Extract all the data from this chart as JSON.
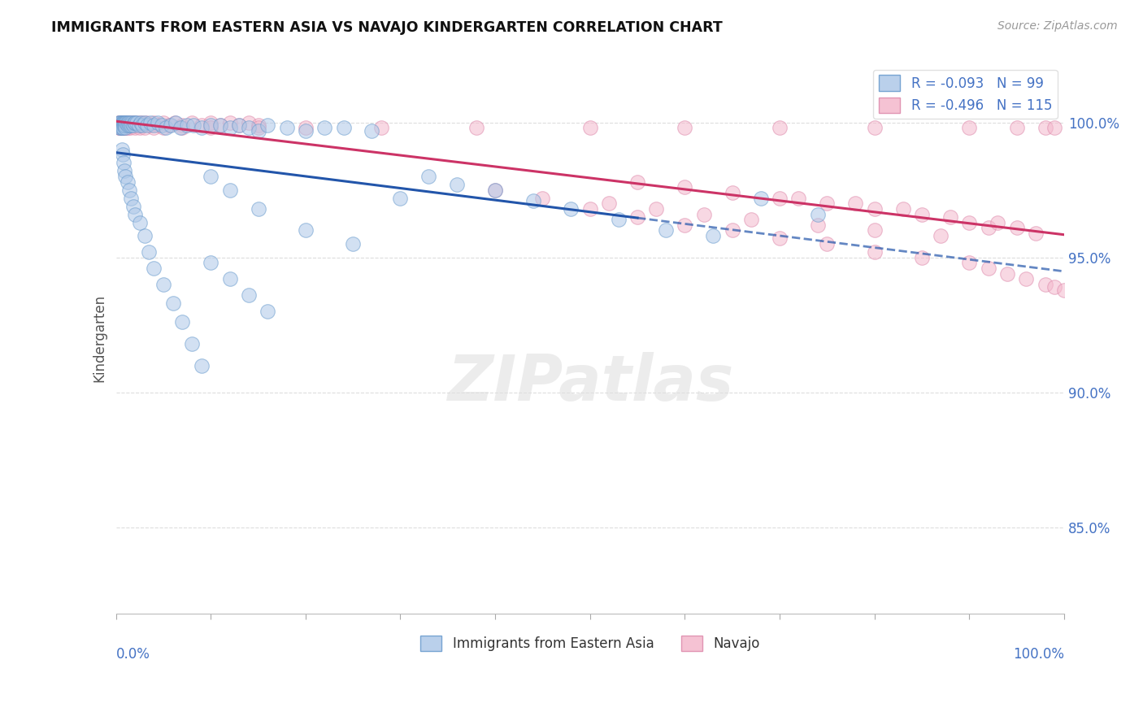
{
  "title": "IMMIGRANTS FROM EASTERN ASIA VS NAVAJO KINDERGARTEN CORRELATION CHART",
  "source_text": "Source: ZipAtlas.com",
  "ylabel": "Kindergarten",
  "legend_series": [
    "Immigrants from Eastern Asia",
    "Navajo"
  ],
  "R_blue": -0.093,
  "N_blue": 99,
  "R_pink": -0.496,
  "N_pink": 115,
  "blue_scatter_color": "#aec8e8",
  "pink_scatter_color": "#f4b8cc",
  "blue_edge_color": "#6699cc",
  "pink_edge_color": "#dd88aa",
  "blue_line_color": "#2255aa",
  "pink_line_color": "#cc3366",
  "ytick_labels": [
    "85.0%",
    "90.0%",
    "95.0%",
    "100.0%"
  ],
  "ytick_values": [
    0.85,
    0.9,
    0.95,
    1.0
  ],
  "xlim": [
    0.0,
    1.0
  ],
  "ylim": [
    0.818,
    1.022
  ],
  "title_color": "#111111",
  "axis_label_color": "#4472C4",
  "ylabel_color": "#555555",
  "grid_color": "#dddddd",
  "watermark_text": "ZIPatlas",
  "blue_x": [
    0.003,
    0.003,
    0.004,
    0.004,
    0.005,
    0.005,
    0.005,
    0.006,
    0.006,
    0.006,
    0.007,
    0.007,
    0.007,
    0.008,
    0.008,
    0.009,
    0.009,
    0.01,
    0.01,
    0.01,
    0.011,
    0.012,
    0.012,
    0.013,
    0.014,
    0.015,
    0.016,
    0.017,
    0.018,
    0.019,
    0.02,
    0.022,
    0.024,
    0.026,
    0.028,
    0.03,
    0.033,
    0.036,
    0.04,
    0.044,
    0.048,
    0.053,
    0.058,
    0.063,
    0.068,
    0.075,
    0.082,
    0.09,
    0.1,
    0.11,
    0.12,
    0.13,
    0.14,
    0.15,
    0.16,
    0.18,
    0.2,
    0.22,
    0.24,
    0.27,
    0.3,
    0.33,
    0.36,
    0.4,
    0.44,
    0.48,
    0.53,
    0.58,
    0.63,
    0.68,
    0.74,
    0.006,
    0.007,
    0.008,
    0.009,
    0.01,
    0.012,
    0.014,
    0.016,
    0.018,
    0.02,
    0.025,
    0.03,
    0.035,
    0.04,
    0.05,
    0.06,
    0.07,
    0.08,
    0.09,
    0.1,
    0.12,
    0.15,
    0.2,
    0.25,
    0.1,
    0.12,
    0.14,
    0.16
  ],
  "blue_y": [
    1.0,
    0.999,
    1.0,
    0.998,
    1.0,
    0.999,
    0.998,
    1.0,
    0.999,
    0.998,
    1.0,
    0.999,
    0.998,
    1.0,
    0.999,
    1.0,
    0.999,
    1.0,
    0.999,
    0.998,
    1.0,
    1.0,
    0.999,
    1.0,
    0.999,
    1.0,
    0.999,
    1.0,
    0.999,
    1.0,
    1.0,
    1.0,
    0.999,
    1.0,
    0.999,
    1.0,
    0.999,
    1.0,
    0.999,
    1.0,
    0.999,
    0.998,
    0.999,
    1.0,
    0.998,
    0.999,
    0.999,
    0.998,
    0.999,
    0.999,
    0.998,
    0.999,
    0.998,
    0.997,
    0.999,
    0.998,
    0.997,
    0.998,
    0.998,
    0.997,
    0.972,
    0.98,
    0.977,
    0.975,
    0.971,
    0.968,
    0.964,
    0.96,
    0.958,
    0.972,
    0.966,
    0.99,
    0.988,
    0.985,
    0.982,
    0.98,
    0.978,
    0.975,
    0.972,
    0.969,
    0.966,
    0.963,
    0.958,
    0.952,
    0.946,
    0.94,
    0.933,
    0.926,
    0.918,
    0.91,
    0.98,
    0.975,
    0.968,
    0.96,
    0.955,
    0.948,
    0.942,
    0.936,
    0.93
  ],
  "pink_x": [
    0.003,
    0.003,
    0.004,
    0.004,
    0.005,
    0.005,
    0.006,
    0.006,
    0.007,
    0.007,
    0.008,
    0.008,
    0.009,
    0.009,
    0.01,
    0.01,
    0.011,
    0.012,
    0.013,
    0.014,
    0.015,
    0.016,
    0.017,
    0.018,
    0.019,
    0.02,
    0.022,
    0.024,
    0.026,
    0.028,
    0.032,
    0.036,
    0.04,
    0.044,
    0.05,
    0.056,
    0.062,
    0.07,
    0.08,
    0.09,
    0.1,
    0.11,
    0.12,
    0.13,
    0.14,
    0.15,
    0.003,
    0.004,
    0.005,
    0.006,
    0.007,
    0.008,
    0.009,
    0.01,
    0.012,
    0.015,
    0.02,
    0.025,
    0.03,
    0.04,
    0.05,
    0.07,
    0.1,
    0.15,
    0.2,
    0.28,
    0.38,
    0.5,
    0.6,
    0.7,
    0.8,
    0.9,
    0.95,
    0.98,
    0.99,
    0.5,
    0.55,
    0.6,
    0.65,
    0.7,
    0.75,
    0.8,
    0.85,
    0.9,
    0.92,
    0.94,
    0.96,
    0.98,
    0.99,
    1.0,
    0.7,
    0.75,
    0.8,
    0.85,
    0.9,
    0.92,
    0.55,
    0.6,
    0.65,
    0.72,
    0.78,
    0.83,
    0.88,
    0.93,
    0.95,
    0.97,
    0.4,
    0.45,
    0.52,
    0.57,
    0.62,
    0.67,
    0.74,
    0.8,
    0.87
  ],
  "pink_y": [
    1.0,
    0.999,
    1.0,
    0.999,
    1.0,
    0.999,
    1.0,
    0.999,
    1.0,
    0.999,
    1.0,
    0.999,
    1.0,
    0.999,
    1.0,
    0.999,
    1.0,
    1.0,
    0.999,
    1.0,
    0.999,
    1.0,
    0.999,
    1.0,
    0.999,
    1.0,
    0.999,
    1.0,
    0.999,
    1.0,
    1.0,
    0.999,
    1.0,
    0.999,
    1.0,
    0.999,
    1.0,
    0.999,
    1.0,
    0.999,
    1.0,
    0.999,
    1.0,
    0.999,
    1.0,
    0.999,
    0.998,
    0.998,
    0.998,
    0.998,
    0.998,
    0.998,
    0.998,
    0.998,
    0.998,
    0.998,
    0.998,
    0.998,
    0.998,
    0.998,
    0.998,
    0.998,
    0.998,
    0.998,
    0.998,
    0.998,
    0.998,
    0.998,
    0.998,
    0.998,
    0.998,
    0.998,
    0.998,
    0.998,
    0.998,
    0.968,
    0.965,
    0.962,
    0.96,
    0.957,
    0.955,
    0.952,
    0.95,
    0.948,
    0.946,
    0.944,
    0.942,
    0.94,
    0.939,
    0.938,
    0.972,
    0.97,
    0.968,
    0.966,
    0.963,
    0.961,
    0.978,
    0.976,
    0.974,
    0.972,
    0.97,
    0.968,
    0.965,
    0.963,
    0.961,
    0.959,
    0.975,
    0.972,
    0.97,
    0.968,
    0.966,
    0.964,
    0.962,
    0.96,
    0.958
  ]
}
